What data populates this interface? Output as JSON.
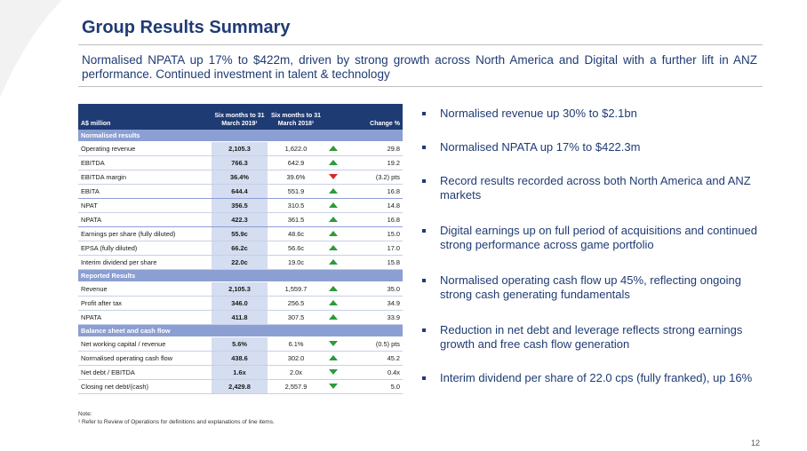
{
  "slide": {
    "title": "Group Results Summary",
    "subtitle": "Normalised NPATA up 17% to $422m, driven by strong growth across North America and Digital with a further lift in ANZ performance. Continued investment in talent & technology",
    "page_number": "12"
  },
  "table": {
    "headers": {
      "label": "A$ million",
      "current": "Six months to 31 March 2019¹",
      "prior": "Six months to 31 March 2018¹",
      "change": "Change %"
    },
    "sections": [
      {
        "title": "Normalised results",
        "rows": [
          {
            "label": "Operating revenue",
            "current": "2,105.3",
            "prior": "1,622.0",
            "trend": "up",
            "change": "29.8"
          },
          {
            "label": "EBITDA",
            "current": "766.3",
            "prior": "642.9",
            "trend": "up",
            "change": "19.2"
          },
          {
            "label": "EBITDA margin",
            "current": "36.4%",
            "prior": "39.6%",
            "trend": "down-red",
            "change": "(3.2) pts"
          },
          {
            "label": "EBITA",
            "current": "644.4",
            "prior": "551.9",
            "trend": "up",
            "change": "16.8"
          },
          {
            "label": "NPAT",
            "current": "356.5",
            "prior": "310.5",
            "trend": "up",
            "change": "14.8"
          },
          {
            "label": "NPATA",
            "current": "422.3",
            "prior": "361.5",
            "trend": "up",
            "change": "16.8"
          },
          {
            "label": "Earnings per share (fully diluted)",
            "current": "55.9c",
            "prior": "48.6c",
            "trend": "up",
            "change": "15.0"
          },
          {
            "label": "EPSA (fully diluted)",
            "current": "66.2c",
            "prior": "56.6c",
            "trend": "up",
            "change": "17.0"
          },
          {
            "label": "Interim dividend per share",
            "current": "22.0c",
            "prior": "19.0c",
            "trend": "up",
            "change": "15.8"
          }
        ]
      },
      {
        "title": "Reported Results",
        "rows": [
          {
            "label": "Revenue",
            "current": "2,105.3",
            "prior": "1,559.7",
            "trend": "up",
            "change": "35.0"
          },
          {
            "label": "Profit after tax",
            "current": "346.0",
            "prior": "256.5",
            "trend": "up",
            "change": "34.9"
          },
          {
            "label": "NPATA",
            "current": "411.8",
            "prior": "307.5",
            "trend": "up",
            "change": "33.9"
          }
        ]
      },
      {
        "title": "Balance sheet and cash flow",
        "rows": [
          {
            "label": "Net working capital / revenue",
            "current": "5.6%",
            "prior": "6.1%",
            "trend": "down-green",
            "change": "(0.5) pts"
          },
          {
            "label": "Normalised operating cash flow",
            "current": "438.6",
            "prior": "302.0",
            "trend": "up",
            "change": "45.2"
          },
          {
            "label": "Net debt / EBITDA",
            "current": "1.6x",
            "prior": "2.0x",
            "trend": "down-green",
            "change": "0.4x"
          },
          {
            "label": "Closing net debt/(cash)",
            "current": "2,429.8",
            "prior": "2,557.9",
            "trend": "down-green",
            "change": "5.0"
          }
        ]
      }
    ]
  },
  "bullets": [
    "Normalised revenue up 30% to $2.1bn",
    "Normalised NPATA up 17% to $422.3m",
    "Record results recorded across both North America and ANZ markets",
    "Digital earnings up on full period of acquisitions and continued strong performance across game portfolio",
    "Normalised operating cash flow up 45%, reflecting ongoing strong cash generating fundamentals",
    "Reduction in net debt and leverage reflects strong earnings growth and free cash flow generation",
    "Interim dividend per share of 22.0 cps (fully franked), up 16%"
  ],
  "note": {
    "label": "Note:",
    "text": "¹ Refer to Review of Operations for definitions and explanations of line items."
  },
  "colors": {
    "title": "#1f3b73",
    "header_bg": "#1f3b73",
    "section_bg": "#8c9fd3",
    "highlight_col": "#d5ddf0",
    "arrow_up": "#2e9a3c",
    "arrow_down_red": "#d62828"
  }
}
